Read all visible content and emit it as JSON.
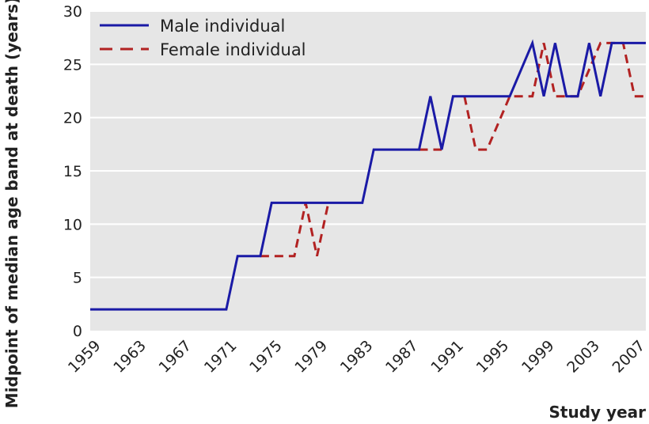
{
  "chart_data": {
    "type": "line",
    "xlabel": "Study year",
    "ylabel": "Midpoint of median age band at death (years)",
    "xlim": [
      1959,
      2008
    ],
    "ylim": [
      0,
      30
    ],
    "x_ticks": [
      "1959",
      "1963",
      "1967",
      "1971",
      "1975",
      "1979",
      "1983",
      "1987",
      "1991",
      "1995",
      "1999",
      "2003",
      "2007"
    ],
    "y_ticks": [
      "0",
      "5",
      "10",
      "15",
      "20",
      "25",
      "30"
    ],
    "grid": "horizontal",
    "legend_position": "top-left",
    "background": "#e6e6e6",
    "series": [
      {
        "name": "Male individual",
        "color": "#1a1aa6",
        "style": "solid",
        "points": [
          [
            1959,
            2
          ],
          [
            1971,
            2
          ],
          [
            1972,
            7
          ],
          [
            1974,
            7
          ],
          [
            1975,
            12
          ],
          [
            1983,
            12
          ],
          [
            1984,
            17
          ],
          [
            1988,
            17
          ],
          [
            1989,
            22
          ],
          [
            1990,
            17
          ],
          [
            1991,
            22
          ],
          [
            1996,
            22
          ],
          [
            1998,
            27
          ],
          [
            1999,
            22
          ],
          [
            2000,
            27
          ],
          [
            2001,
            22
          ],
          [
            2002,
            22
          ],
          [
            2003,
            27
          ],
          [
            2004,
            22
          ],
          [
            2005,
            27
          ],
          [
            2008,
            27
          ]
        ]
      },
      {
        "name": "Female individual",
        "color": "#b22222",
        "style": "dashed",
        "segments": [
          [
            [
              1974,
              7
            ],
            [
              1977,
              7
            ],
            [
              1978,
              12
            ],
            [
              1979,
              7
            ],
            [
              1980,
              12
            ]
          ],
          [
            [
              1988,
              17
            ],
            [
              1990,
              17
            ]
          ],
          [
            [
              1992,
              22
            ],
            [
              1993,
              17
            ],
            [
              1994,
              17
            ],
            [
              1996,
              22
            ],
            [
              1998,
              22
            ],
            [
              1999,
              27
            ],
            [
              2000,
              22
            ],
            [
              2002,
              22
            ],
            [
              2004,
              27
            ],
            [
              2006,
              27
            ],
            [
              2007,
              22
            ],
            [
              2008,
              22
            ]
          ]
        ]
      }
    ]
  }
}
